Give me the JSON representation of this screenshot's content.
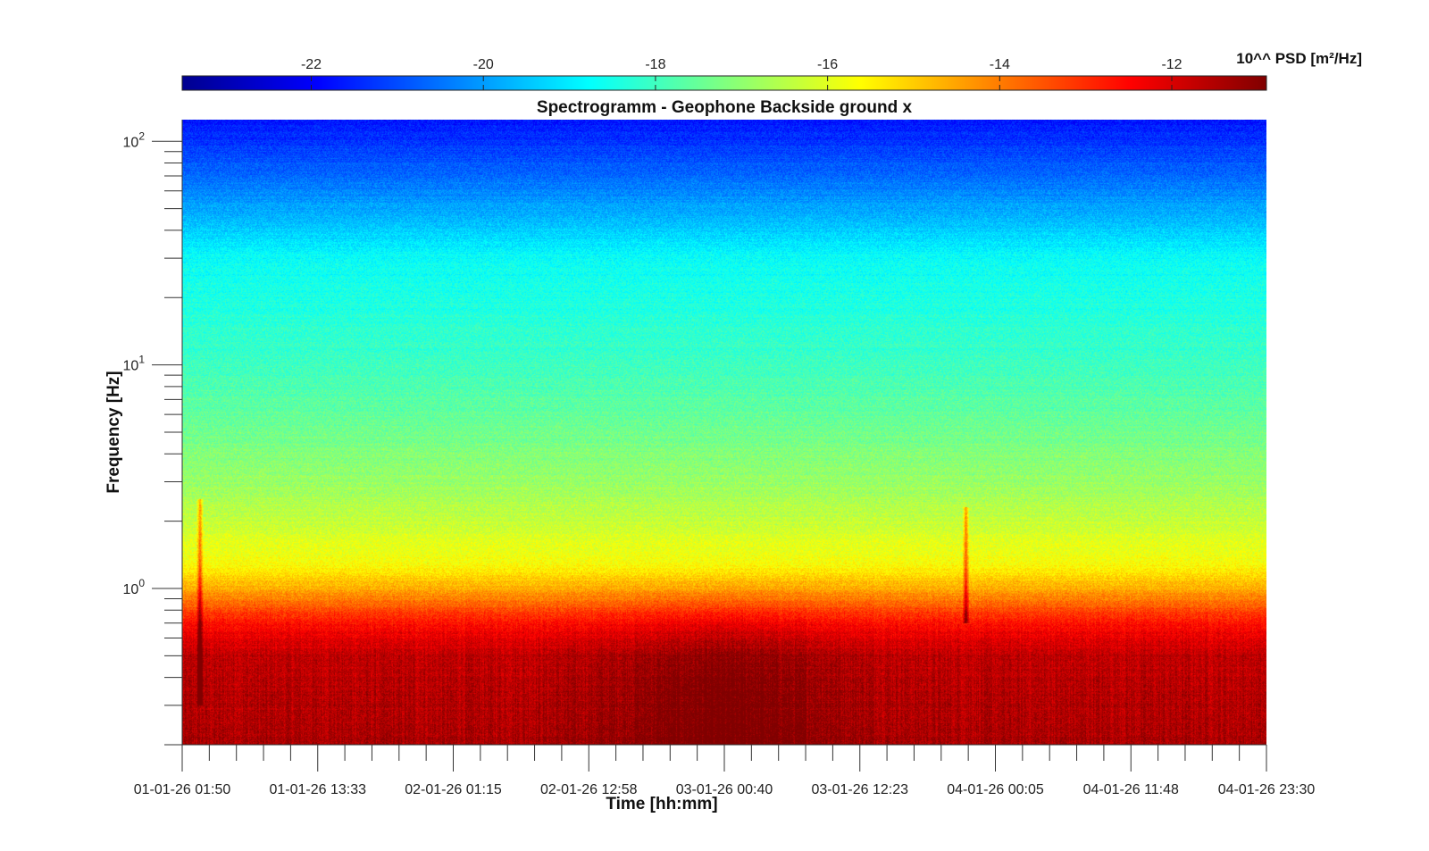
{
  "chart_data": {
    "type": "heatmap",
    "title": "Spectrogramm - Geophone Backside ground x",
    "xlabel": "Time [hh:mm]",
    "ylabel": "Frequency [Hz]",
    "x_tick_labels": [
      "01-01-26 01:50",
      "01-01-26 13:33",
      "02-01-26 01:15",
      "02-01-26 12:58",
      "03-01-26 00:40",
      "03-01-26 12:23",
      "04-01-26 00:05",
      "04-01-26 11:48",
      "04-01-26 23:30"
    ],
    "y_scale": "log",
    "y_range_hz": [
      0.2,
      125
    ],
    "y_tick_labels": [
      {
        "base": "10",
        "exp": "0",
        "value": 1
      },
      {
        "base": "10",
        "exp": "1",
        "value": 10
      },
      {
        "base": "10",
        "exp": "2",
        "value": 100
      }
    ],
    "colorbar": {
      "label": "10^^ PSD [m²/Hz]",
      "colormap": "jet",
      "range": [
        -23.5,
        -10.9
      ],
      "ticks": [
        -22,
        -20,
        -18,
        -16,
        -14,
        -12
      ],
      "tick_labels": [
        "-22",
        "-20",
        "-18",
        "-16",
        "-14",
        "-12"
      ],
      "position": "top"
    },
    "psd_log10_profile": [
      {
        "freq_hz": 0.2,
        "psd": -11.4
      },
      {
        "freq_hz": 0.5,
        "psd": -11.7
      },
      {
        "freq_hz": 0.7,
        "psd": -12.6
      },
      {
        "freq_hz": 1.0,
        "psd": -14.6
      },
      {
        "freq_hz": 1.3,
        "psd": -15.7
      },
      {
        "freq_hz": 3,
        "psd": -16.9
      },
      {
        "freq_hz": 10,
        "psd": -18.0
      },
      {
        "freq_hz": 30,
        "psd": -18.7
      },
      {
        "freq_hz": 60,
        "psd": -20.3
      },
      {
        "freq_hz": 125,
        "psd": -21.7
      }
    ],
    "transient_events": [
      {
        "time": "01-01-26 03:20",
        "freq_range_hz": [
          0.3,
          2.5
        ]
      },
      {
        "time": "03-01-26 21:30",
        "freq_range_hz": [
          0.7,
          2.3
        ]
      }
    ]
  }
}
